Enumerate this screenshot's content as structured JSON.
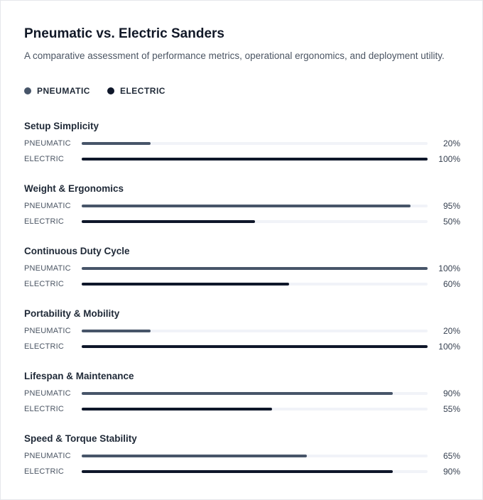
{
  "chart_data": {
    "type": "bar",
    "orientation": "horizontal",
    "title": "Pneumatic vs. Electric Sanders",
    "subtitle": "A comparative assessment of performance metrics, operational ergonomics, and deployment utility.",
    "xlim": [
      0,
      100
    ],
    "legend_placement": "top-left",
    "grid": false,
    "categories": [
      "Setup Simplicity",
      "Weight & Ergonomics",
      "Continuous Duty Cycle",
      "Portability & Mobility",
      "Lifespan & Maintenance",
      "Speed & Torque Stability"
    ],
    "series": [
      {
        "name": "PNEUMATIC",
        "color": "#475569",
        "values": [
          20,
          95,
          100,
          20,
          90,
          65
        ]
      },
      {
        "name": "ELECTRIC",
        "color": "#0f172a",
        "values": [
          100,
          50,
          60,
          100,
          55,
          90
        ]
      }
    ]
  }
}
